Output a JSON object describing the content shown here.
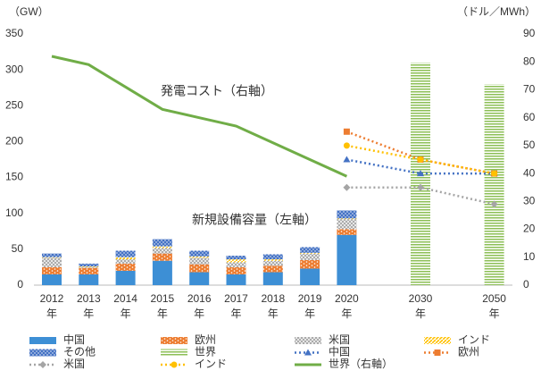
{
  "chart_data": {
    "type": "combo",
    "y_label": "（GW）",
    "y2_label": "（ドル／MWh）",
    "annotations": [
      "発電コスト（右軸）",
      "新規設備容量（左軸）"
    ],
    "categories": [
      "2012年",
      "2013年",
      "2014年",
      "2015年",
      "2016年",
      "2017年",
      "2018年",
      "2019年",
      "2020年",
      "2030年",
      "2050年"
    ],
    "ylim": [
      0,
      350
    ],
    "yticks": [
      0,
      50,
      100,
      150,
      200,
      250,
      300,
      350
    ],
    "y2lim": [
      0,
      90
    ],
    "y2ticks": [
      0,
      10,
      20,
      30,
      40,
      50,
      60,
      70,
      80,
      90
    ],
    "series": [
      {
        "name": "中国",
        "type": "bar",
        "color": "#3d8fd5",
        "values": [
          15,
          15,
          20,
          34,
          18,
          15,
          18,
          23,
          70,
          null,
          null
        ]
      },
      {
        "name": "欧州",
        "type": "bar",
        "color": "#ed7d31",
        "values": [
          10,
          9,
          10,
          10,
          11,
          10,
          9,
          12,
          8,
          null,
          null
        ]
      },
      {
        "name": "米国",
        "type": "bar",
        "color": "#a5a5a5",
        "values": [
          13,
          1,
          6,
          8,
          9,
          7,
          7,
          9,
          14,
          null,
          null
        ]
      },
      {
        "name": "インド",
        "type": "bar",
        "color": "#ffc000",
        "values": [
          1,
          1,
          3,
          2,
          2,
          4,
          2,
          1,
          1,
          null,
          null
        ]
      },
      {
        "name": "その他",
        "type": "bar",
        "color": "#4472c4",
        "values": [
          5,
          4,
          9,
          10,
          8,
          5,
          7,
          8,
          11,
          null,
          null
        ]
      },
      {
        "name": "世界",
        "type": "bar",
        "color": "#8cbf56",
        "values": [
          null,
          null,
          null,
          null,
          null,
          null,
          null,
          null,
          null,
          310,
          280
        ]
      },
      {
        "name": "中国",
        "type": "line",
        "axis": "y2",
        "style": "dotted",
        "marker": "triangle",
        "color": "#4472c4",
        "values": [
          null,
          null,
          null,
          null,
          null,
          null,
          null,
          null,
          45,
          40,
          40
        ]
      },
      {
        "name": "欧州",
        "type": "line",
        "axis": "y2",
        "style": "dotted",
        "marker": "square",
        "color": "#ed7d31",
        "values": [
          null,
          null,
          null,
          null,
          null,
          null,
          null,
          null,
          55,
          45,
          40
        ]
      },
      {
        "name": "米国",
        "type": "line",
        "axis": "y2",
        "style": "dotted",
        "marker": "diamond",
        "color": "#a5a5a5",
        "values": [
          null,
          null,
          null,
          null,
          null,
          null,
          null,
          null,
          35,
          35,
          29
        ]
      },
      {
        "name": "インド",
        "type": "line",
        "axis": "y2",
        "style": "dotted",
        "marker": "circle",
        "color": "#ffc000",
        "values": [
          null,
          null,
          null,
          null,
          null,
          null,
          null,
          null,
          50,
          45,
          40
        ]
      },
      {
        "name": "世界（右軸）",
        "type": "line",
        "axis": "y2",
        "style": "solid",
        "color": "#70ad47",
        "values": [
          82,
          79,
          71,
          63,
          60,
          57,
          51,
          45,
          39,
          null,
          null
        ]
      }
    ]
  }
}
